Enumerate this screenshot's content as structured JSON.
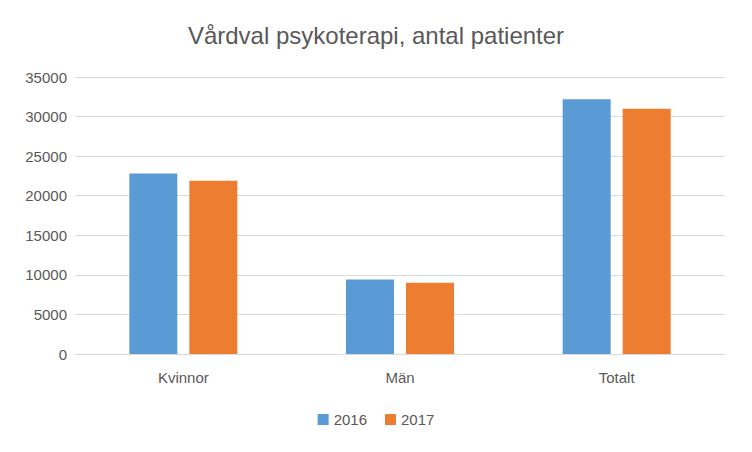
{
  "chart_data": {
    "type": "bar",
    "title": "Vårdval psykoterapi, antal patienter",
    "categories": [
      "Kvinnor",
      "Män",
      "Totalt"
    ],
    "series": [
      {
        "name": "2016",
        "color": "#5b9bd5",
        "values": [
          22800,
          9400,
          32200
        ]
      },
      {
        "name": "2017",
        "color": "#ed7d31",
        "values": [
          21900,
          9000,
          31000
        ]
      }
    ],
    "ylim": [
      0,
      35000
    ],
    "yticks": [
      0,
      5000,
      10000,
      15000,
      20000,
      25000,
      30000,
      35000
    ],
    "grid": true,
    "legend": "bottom"
  }
}
